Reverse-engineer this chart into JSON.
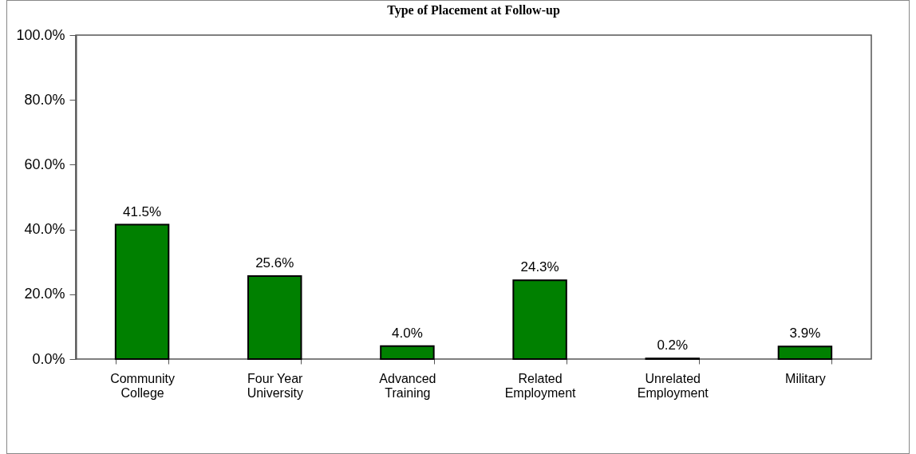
{
  "chart_data": {
    "type": "bar",
    "title": "Type of Placement at Follow-up",
    "categories": [
      "Community College",
      "Four Year University",
      "Advanced Training",
      "Related Employment",
      "Unrelated Employment",
      "Military"
    ],
    "values": [
      41.5,
      25.6,
      4.0,
      24.3,
      0.2,
      3.9
    ],
    "value_labels": [
      "41.5%",
      "25.6%",
      "4.0%",
      "24.3%",
      "0.2%",
      "3.9%"
    ],
    "color": "#008000",
    "ylim": [
      0,
      100
    ],
    "yticks": [
      {
        "value": 0,
        "label": "0.0%"
      },
      {
        "value": 20,
        "label": "20.0%"
      },
      {
        "value": 40,
        "label": "40.0%"
      },
      {
        "value": 60,
        "label": "60.0%"
      },
      {
        "value": 80,
        "label": "80.0%"
      },
      {
        "value": 100,
        "label": "100.0%"
      }
    ],
    "grid": false
  }
}
